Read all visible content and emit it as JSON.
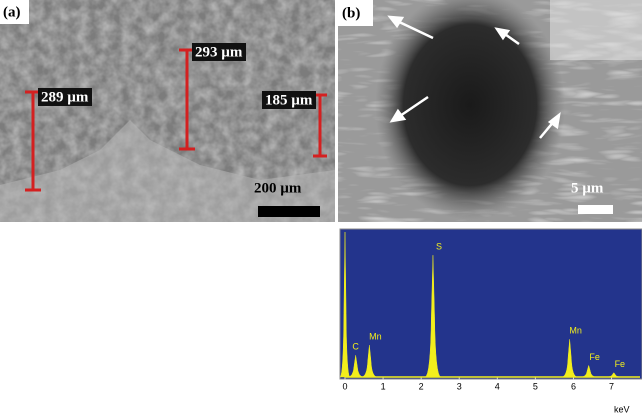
{
  "panels": {
    "a": {
      "label": "(a)",
      "measurements": [
        "289 µm",
        "293 µm",
        "185 µm"
      ],
      "scale_bar": "200 µm"
    },
    "b": {
      "label": "(b)",
      "scale_bar": "5 µm"
    }
  },
  "chart_data": {
    "type": "spectrum",
    "x_label": "keV",
    "peaks": {
      "x": [
        0,
        0.28,
        0.64,
        2.31,
        5.9,
        6.4,
        7.06
      ],
      "values": [
        100,
        15,
        22,
        84,
        26,
        8,
        3
      ],
      "labels": [
        null,
        "C",
        "Mn",
        "S",
        "Mn",
        "Fe",
        "Fe"
      ]
    },
    "color": "#f2ee1c",
    "background": "#23348c",
    "xlim": [
      0,
      7.8
    ],
    "ylim": [
      0,
      100
    ],
    "xticks": [
      0,
      1,
      2,
      3,
      4,
      5,
      6,
      7
    ]
  }
}
